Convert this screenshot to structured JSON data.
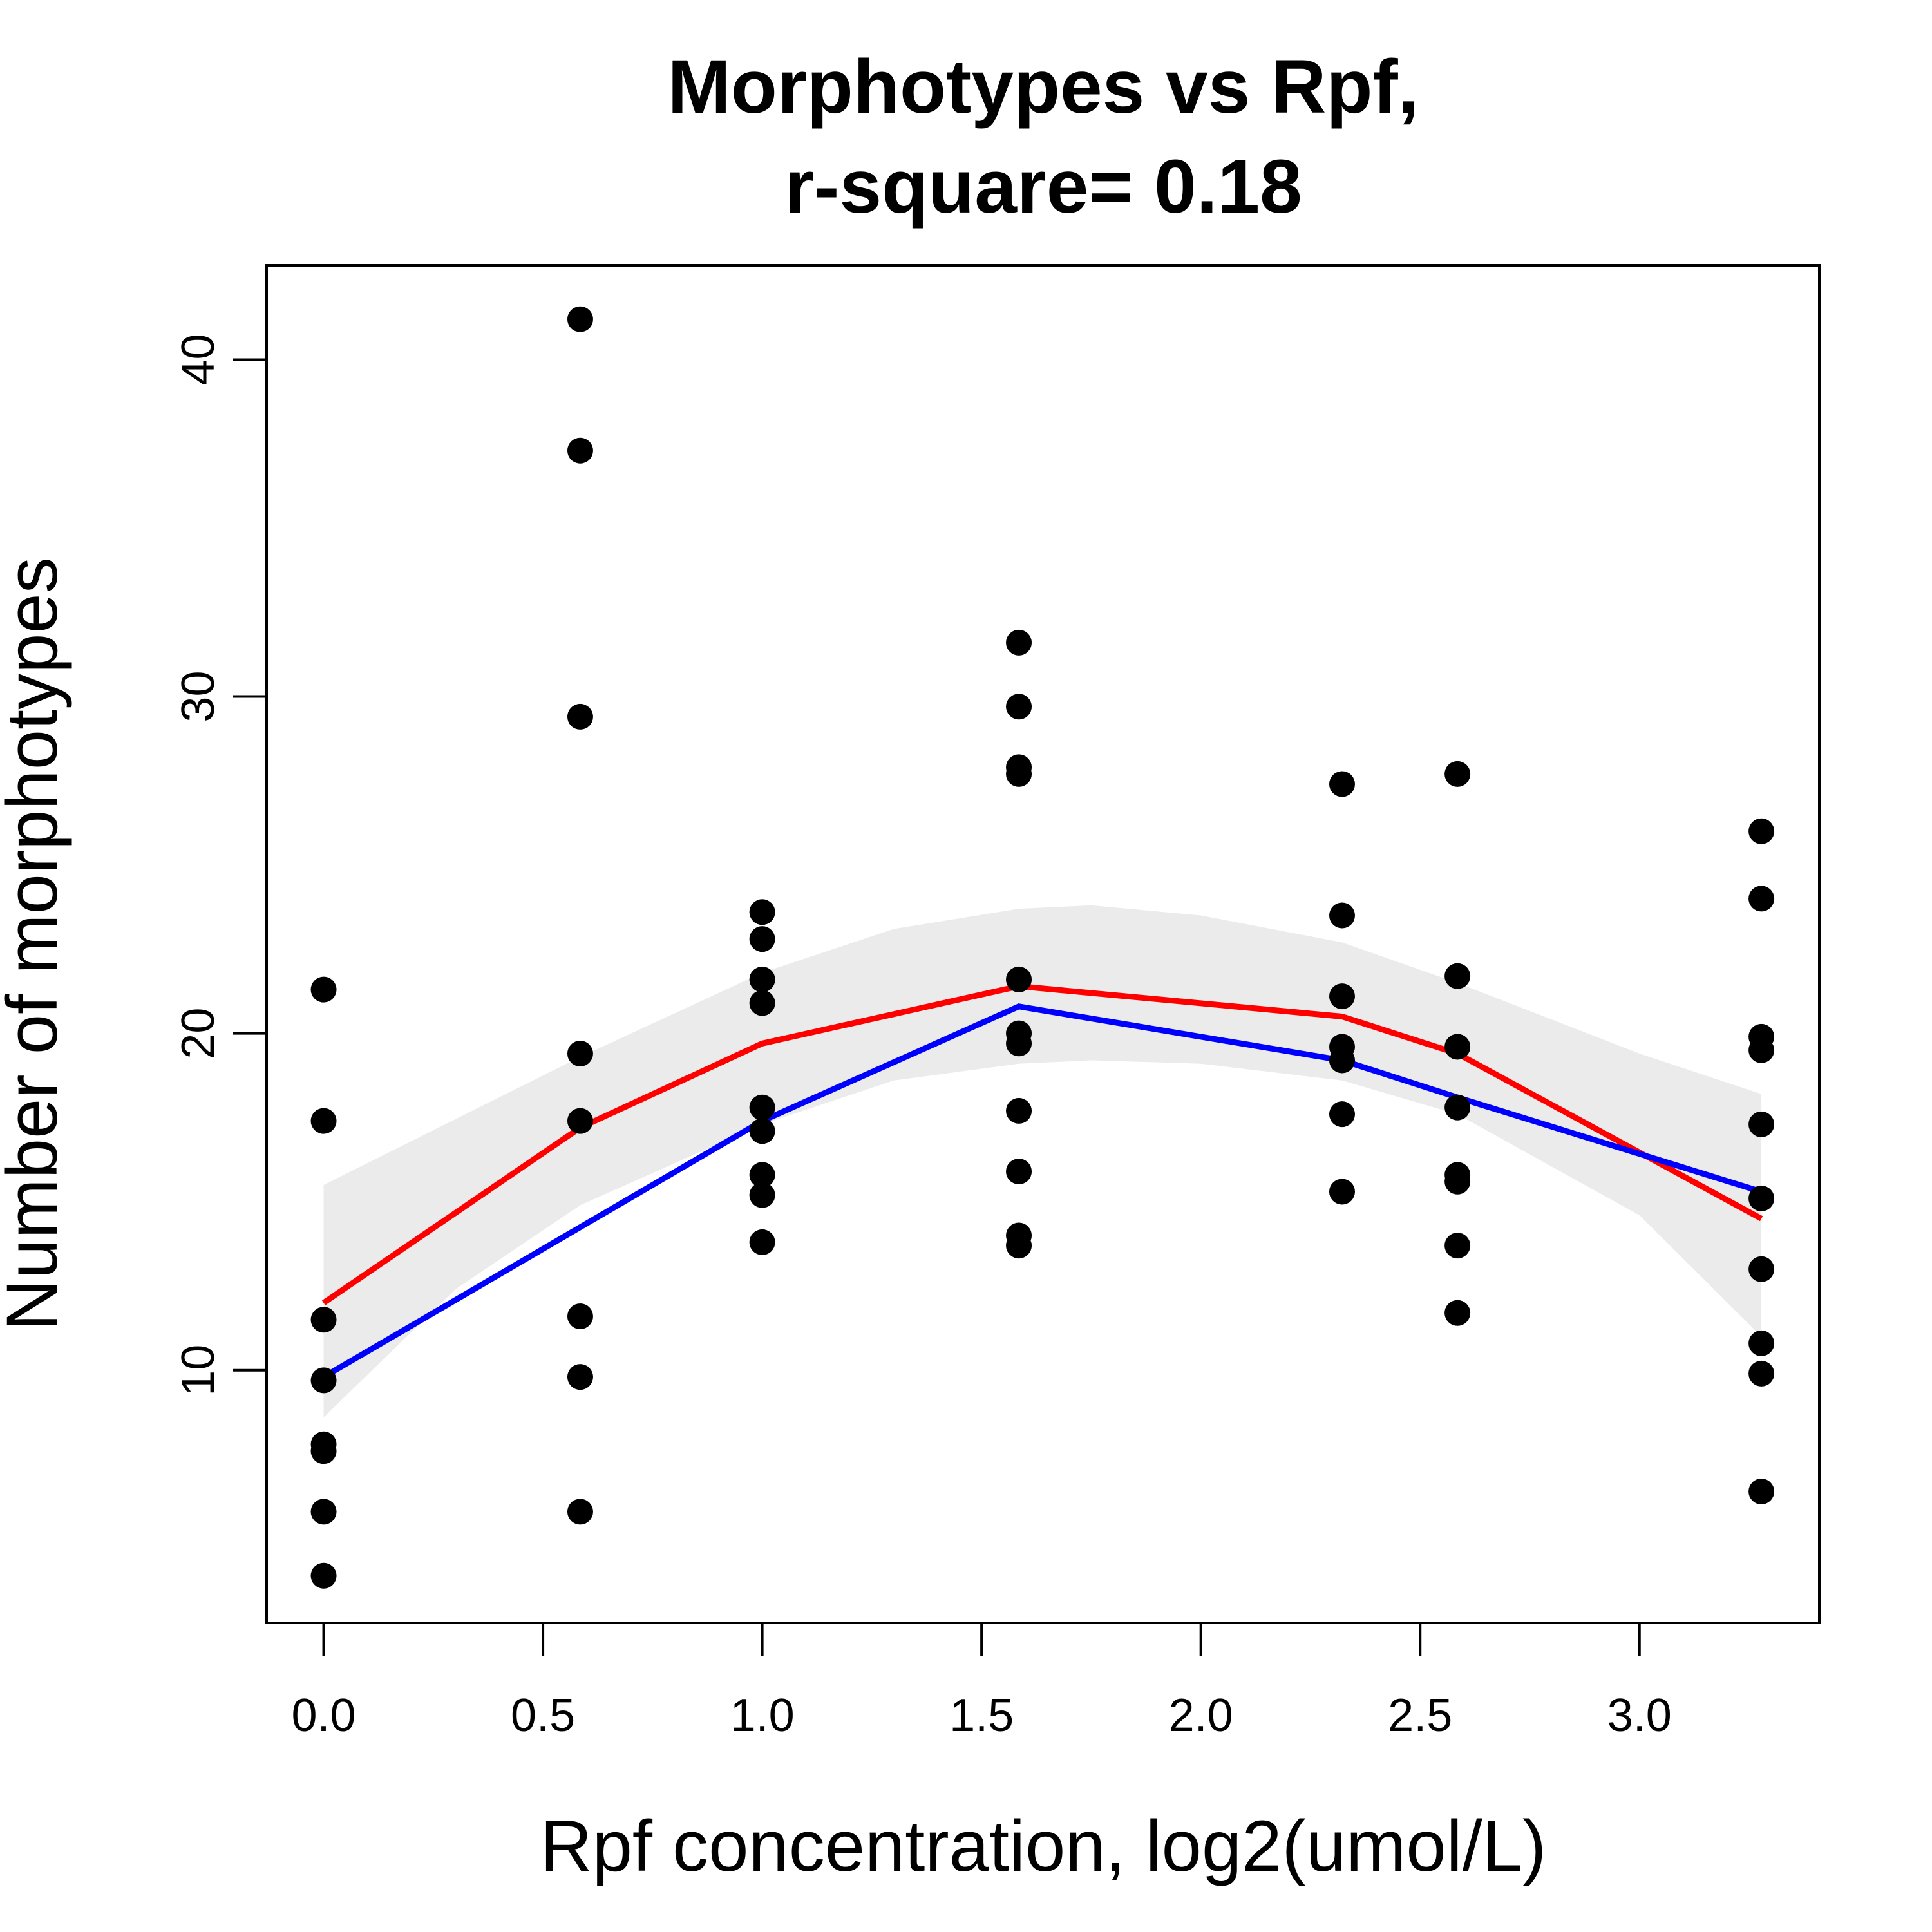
{
  "chart_data": {
    "type": "scatter",
    "title_line1": "Morphotypes vs Rpf,",
    "title_line2": "r-square= 0.18",
    "xlabel": "Rpf concentration, log2(umol/L)",
    "ylabel": "Number of morphotypes",
    "xlim": [
      -0.13,
      3.41
    ],
    "ylim": [
      2.5,
      42.8
    ],
    "x_ticks": [
      0.0,
      0.5,
      1.0,
      1.5,
      2.0,
      2.5,
      3.0
    ],
    "x_tick_labels": [
      "0.0",
      "0.5",
      "1.0",
      "1.5",
      "2.0",
      "2.5",
      "3.0"
    ],
    "y_ticks": [
      10,
      20,
      30,
      40
    ],
    "y_tick_labels": [
      "10",
      "20",
      "30",
      "40"
    ],
    "grid": false,
    "colors": {
      "points": "#000000",
      "red_line": "#ff0000",
      "blue_line": "#0000ff",
      "confidence_band": "#ebebeb"
    },
    "points": [
      {
        "x": 0,
        "y": 21.3
      },
      {
        "x": 0,
        "y": 17.4
      },
      {
        "x": 0,
        "y": 11.5
      },
      {
        "x": 0,
        "y": 9.7
      },
      {
        "x": 0,
        "y": 7.8
      },
      {
        "x": 0,
        "y": 7.6
      },
      {
        "x": 0,
        "y": 5.8
      },
      {
        "x": 0,
        "y": 3.9
      },
      {
        "x": 0.585,
        "y": 41.2
      },
      {
        "x": 0.585,
        "y": 37.3
      },
      {
        "x": 0.585,
        "y": 29.4
      },
      {
        "x": 0.585,
        "y": 19.4
      },
      {
        "x": 0.585,
        "y": 17.4
      },
      {
        "x": 0.585,
        "y": 11.6
      },
      {
        "x": 0.585,
        "y": 9.8
      },
      {
        "x": 0.585,
        "y": 5.8
      },
      {
        "x": 1,
        "y": 23.6
      },
      {
        "x": 1,
        "y": 22.8
      },
      {
        "x": 1,
        "y": 21.6
      },
      {
        "x": 1,
        "y": 20.9
      },
      {
        "x": 1,
        "y": 17.8
      },
      {
        "x": 1,
        "y": 17.1
      },
      {
        "x": 1,
        "y": 15.8
      },
      {
        "x": 1,
        "y": 15.2
      },
      {
        "x": 1,
        "y": 13.8
      },
      {
        "x": 1.585,
        "y": 31.6
      },
      {
        "x": 1.585,
        "y": 29.7
      },
      {
        "x": 1.585,
        "y": 27.9
      },
      {
        "x": 1.585,
        "y": 27.7
      },
      {
        "x": 1.585,
        "y": 21.6
      },
      {
        "x": 1.585,
        "y": 20.0
      },
      {
        "x": 1.585,
        "y": 19.7
      },
      {
        "x": 1.585,
        "y": 17.7
      },
      {
        "x": 1.585,
        "y": 15.9
      },
      {
        "x": 1.585,
        "y": 14.0
      },
      {
        "x": 1.585,
        "y": 13.7
      },
      {
        "x": 2.322,
        "y": 27.4
      },
      {
        "x": 2.322,
        "y": 23.5
      },
      {
        "x": 2.322,
        "y": 21.1
      },
      {
        "x": 2.322,
        "y": 19.6
      },
      {
        "x": 2.322,
        "y": 19.2
      },
      {
        "x": 2.322,
        "y": 17.6
      },
      {
        "x": 2.322,
        "y": 15.3
      },
      {
        "x": 2.585,
        "y": 27.7
      },
      {
        "x": 2.585,
        "y": 21.7
      },
      {
        "x": 2.585,
        "y": 19.6
      },
      {
        "x": 2.585,
        "y": 17.8
      },
      {
        "x": 2.585,
        "y": 15.8
      },
      {
        "x": 2.585,
        "y": 15.6
      },
      {
        "x": 2.585,
        "y": 13.7
      },
      {
        "x": 2.585,
        "y": 11.7
      },
      {
        "x": 3.278,
        "y": 26.0
      },
      {
        "x": 3.278,
        "y": 24.0
      },
      {
        "x": 3.278,
        "y": 19.9
      },
      {
        "x": 3.278,
        "y": 19.5
      },
      {
        "x": 3.278,
        "y": 17.3
      },
      {
        "x": 3.278,
        "y": 15.1
      },
      {
        "x": 3.278,
        "y": 13.0
      },
      {
        "x": 3.278,
        "y": 10.8
      },
      {
        "x": 3.278,
        "y": 9.9
      },
      {
        "x": 3.278,
        "y": 6.4
      }
    ],
    "red_line": [
      {
        "x": 0,
        "y": 12.0
      },
      {
        "x": 0.585,
        "y": 17.2
      },
      {
        "x": 1,
        "y": 19.7
      },
      {
        "x": 1.585,
        "y": 21.4
      },
      {
        "x": 2.322,
        "y": 20.5
      },
      {
        "x": 2.585,
        "y": 19.4
      },
      {
        "x": 3.278,
        "y": 14.5
      }
    ],
    "blue_line": [
      {
        "x": 0,
        "y": 9.8
      },
      {
        "x": 1,
        "y": 17.4
      },
      {
        "x": 1.585,
        "y": 20.8
      },
      {
        "x": 2.322,
        "y": 19.2
      },
      {
        "x": 2.585,
        "y": 18.1
      },
      {
        "x": 3.278,
        "y": 15.3
      }
    ],
    "confidence_band": {
      "upper": [
        {
          "x": 0,
          "y": 15.5
        },
        {
          "x": 0.585,
          "y": 19.3
        },
        {
          "x": 1,
          "y": 21.8
        },
        {
          "x": 1.3,
          "y": 23.1
        },
        {
          "x": 1.585,
          "y": 23.7
        },
        {
          "x": 1.75,
          "y": 23.8
        },
        {
          "x": 2.0,
          "y": 23.5
        },
        {
          "x": 2.322,
          "y": 22.7
        },
        {
          "x": 2.585,
          "y": 21.5
        },
        {
          "x": 3.0,
          "y": 19.4
        },
        {
          "x": 3.278,
          "y": 18.2
        }
      ],
      "lower": [
        {
          "x": 0,
          "y": 8.6
        },
        {
          "x": 0.3,
          "y": 12.4
        },
        {
          "x": 0.585,
          "y": 14.9
        },
        {
          "x": 1,
          "y": 17.3
        },
        {
          "x": 1.3,
          "y": 18.6
        },
        {
          "x": 1.585,
          "y": 19.1
        },
        {
          "x": 1.75,
          "y": 19.2
        },
        {
          "x": 2.0,
          "y": 19.1
        },
        {
          "x": 2.322,
          "y": 18.6
        },
        {
          "x": 2.585,
          "y": 17.6
        },
        {
          "x": 3.0,
          "y": 14.6
        },
        {
          "x": 3.278,
          "y": 11.0
        }
      ]
    }
  }
}
